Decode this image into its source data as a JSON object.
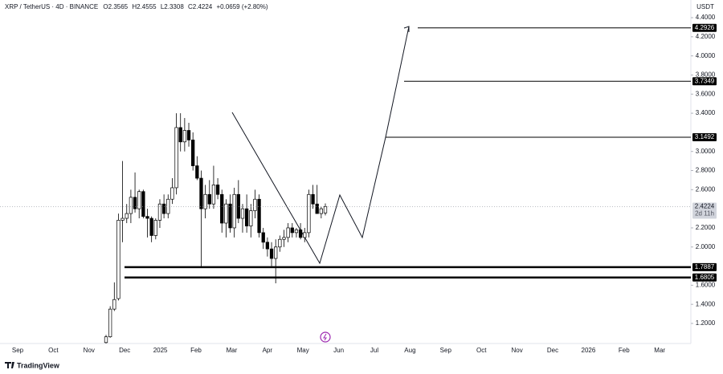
{
  "chart_data": {
    "type": "candlestick",
    "title": "XRP / TetherUS · 4D · BINANCE",
    "ohlc_labels": [
      "O2.3565",
      "H2.4555",
      "L2.3308",
      "C2.4224",
      "+0.0659 (+2.80%)"
    ],
    "currency": "USDT",
    "countdown": "2d 11h",
    "brand": "TradingView",
    "categories": [
      "Sep",
      "Oct",
      "Nov",
      "Dec",
      "2025",
      "Feb",
      "Mar",
      "Apr",
      "May",
      "Jun",
      "Jul",
      "Aug",
      "Sep",
      "Oct",
      "Nov",
      "Dec",
      "2026",
      "Feb",
      "Mar"
    ],
    "open": [
      1.0,
      1.06,
      1.35,
      1.46,
      2.28,
      2.3,
      2.35,
      2.52,
      2.4,
      2.58,
      2.32,
      2.3,
      2.12,
      2.28,
      2.45,
      2.35,
      2.5,
      2.62,
      3.25,
      3.1,
      3.22,
      3.12,
      2.85,
      2.72,
      2.4,
      2.55,
      2.45,
      2.65,
      2.55,
      2.25,
      2.45,
      2.2,
      2.55,
      2.3,
      2.4,
      2.22,
      2.38,
      2.5,
      2.15,
      2.05,
      1.98,
      1.88,
      2.0,
      2.08,
      2.1,
      2.2,
      2.15,
      2.18,
      2.1,
      2.15,
      2.55,
      2.45,
      2.35,
      2.3565
    ],
    "high": [
      1.08,
      1.38,
      1.63,
      2.35,
      2.9,
      2.45,
      2.6,
      2.78,
      2.6,
      2.6,
      2.4,
      2.32,
      2.3,
      2.5,
      2.55,
      2.55,
      2.72,
      3.4,
      3.4,
      3.35,
      3.3,
      3.2,
      2.95,
      2.8,
      2.65,
      2.7,
      2.85,
      2.72,
      2.6,
      2.5,
      2.55,
      2.62,
      2.7,
      2.45,
      2.55,
      2.45,
      2.6,
      2.55,
      2.2,
      2.1,
      2.05,
      2.08,
      2.12,
      2.18,
      2.25,
      2.25,
      2.2,
      2.25,
      2.2,
      2.6,
      2.65,
      2.65,
      2.42,
      2.4555
    ],
    "low": [
      0.99,
      1.05,
      1.33,
      1.44,
      2.05,
      2.25,
      2.25,
      2.36,
      2.3,
      2.3,
      2.1,
      2.05,
      2.08,
      2.2,
      2.3,
      2.3,
      2.45,
      2.55,
      3.0,
      3.0,
      3.05,
      2.8,
      2.7,
      1.78,
      2.3,
      2.4,
      2.4,
      2.5,
      2.15,
      2.1,
      2.15,
      2.1,
      2.25,
      2.15,
      2.15,
      2.1,
      2.3,
      2.1,
      1.98,
      1.9,
      1.8,
      1.62,
      1.95,
      2.0,
      2.05,
      2.1,
      2.1,
      2.08,
      2.05,
      2.1,
      2.4,
      2.35,
      2.3,
      2.3308
    ],
    "close": [
      1.06,
      1.35,
      1.45,
      2.28,
      2.3,
      2.35,
      2.52,
      2.4,
      2.58,
      2.32,
      2.3,
      2.12,
      2.28,
      2.45,
      2.35,
      2.5,
      2.62,
      3.25,
      3.1,
      3.22,
      3.12,
      2.85,
      2.72,
      2.4,
      2.55,
      2.45,
      2.65,
      2.55,
      2.25,
      2.45,
      2.2,
      2.55,
      2.3,
      2.4,
      2.22,
      2.38,
      2.5,
      2.15,
      2.05,
      1.98,
      1.88,
      2.0,
      2.08,
      2.1,
      2.2,
      2.15,
      2.18,
      2.1,
      2.15,
      2.55,
      2.45,
      2.35,
      2.4,
      2.4224
    ],
    "up_color": "#ffffff",
    "down_color": "#000000",
    "levels": [
      4.2926,
      3.7349,
      3.1492,
      1.7887,
      1.6805
    ],
    "ylim": [
      0.99,
      4.585
    ],
    "yticks": [
      {
        "value": 4.4,
        "label": "4.4000"
      },
      {
        "value": 4.2,
        "label": "4.2000"
      },
      {
        "value": 4.0,
        "label": "4.0000"
      },
      {
        "value": 3.8,
        "label": "3.8000"
      },
      {
        "value": 3.6,
        "label": "3.6000"
      },
      {
        "value": 3.4,
        "label": "3.4000"
      },
      {
        "value": 3.0,
        "label": "3.0000"
      },
      {
        "value": 2.8,
        "label": "2.8000"
      },
      {
        "value": 2.6,
        "label": "2.6000"
      },
      {
        "value": 2.2,
        "label": "2.2000"
      },
      {
        "value": 2.0,
        "label": "2.0000"
      },
      {
        "value": 1.6,
        "label": "1.6000"
      },
      {
        "value": 1.4,
        "label": "1.4000"
      },
      {
        "value": 1.2,
        "label": "1.2000"
      }
    ]
  }
}
